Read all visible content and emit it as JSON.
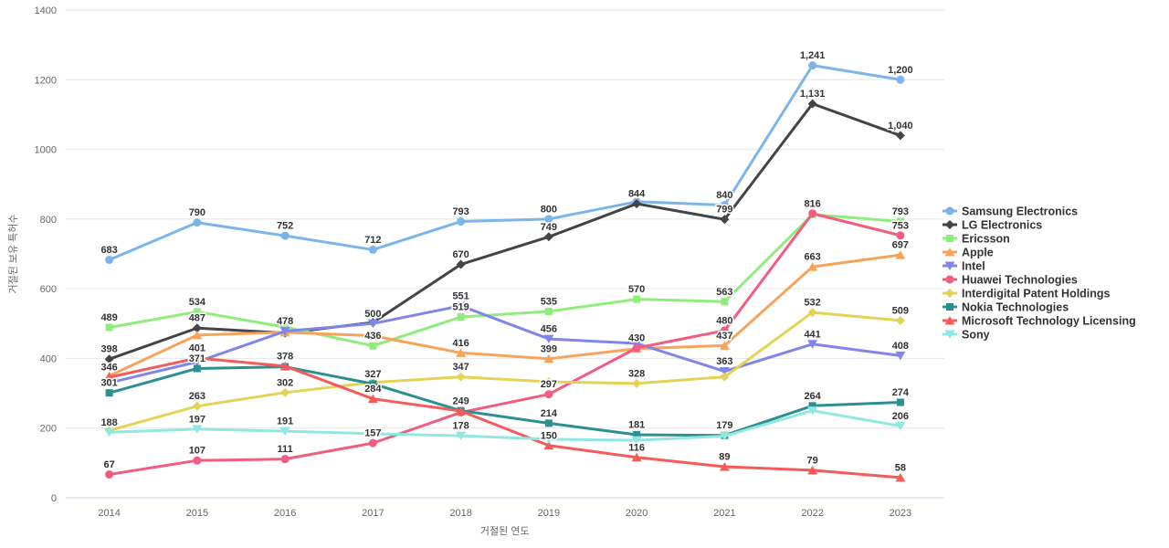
{
  "chart_data": {
    "type": "line",
    "title": "",
    "xlabel": "거절된 연도",
    "ylabel": "거절된 보유 특허수",
    "categories": [
      "2014",
      "2015",
      "2016",
      "2017",
      "2018",
      "2019",
      "2020",
      "2021",
      "2022",
      "2023"
    ],
    "y_axis": {
      "min": 0,
      "max": 1400,
      "tick_interval": 200,
      "tick_labels": [
        "0",
        "200",
        "400",
        "600",
        "800",
        "1000",
        "1200",
        "1400"
      ]
    },
    "grid": "horizontal-only",
    "legend_position": "right",
    "data_labels": "shown above points, overlapping labels hidden",
    "series": [
      {
        "name": "Samsung Electronics",
        "color": "#7cb5ec",
        "marker": "circle",
        "values": [
          683,
          790,
          752,
          712,
          793,
          800,
          850,
          840,
          1241,
          1200
        ],
        "hidden_label_indices": [
          6
        ]
      },
      {
        "name": "LG Electronics",
        "color": "#434348",
        "marker": "diamond",
        "values": [
          398,
          487,
          473,
          503,
          670,
          749,
          844,
          799,
          1131,
          1040
        ],
        "hidden_label_indices": [
          2,
          3
        ]
      },
      {
        "name": "Ericsson",
        "color": "#90ed7d",
        "marker": "square",
        "values": [
          489,
          534,
          490,
          436,
          519,
          535,
          570,
          563,
          813,
          793
        ],
        "hidden_label_indices": [
          2,
          8
        ]
      },
      {
        "name": "Apple",
        "color": "#f7a35c",
        "marker": "triangle",
        "values": [
          350,
          467,
          475,
          465,
          416,
          399,
          428,
          437,
          663,
          697
        ],
        "hidden_label_indices": [
          0,
          1,
          2,
          3,
          6
        ]
      },
      {
        "name": "Intel",
        "color": "#8085e9",
        "marker": "triangle-down",
        "values": [
          330,
          390,
          478,
          500,
          551,
          456,
          443,
          363,
          441,
          408
        ],
        "hidden_label_indices": [
          0,
          1,
          6
        ]
      },
      {
        "name": "Huawei Technologies",
        "color": "#f15c80",
        "marker": "circle",
        "values": [
          67,
          107,
          111,
          157,
          245,
          297,
          430,
          480,
          816,
          753
        ],
        "hidden_label_indices": [
          4
        ]
      },
      {
        "name": "Interdigital Patent Holdings",
        "color": "#e4d354",
        "marker": "diamond",
        "values": [
          193,
          263,
          302,
          331,
          347,
          333,
          328,
          347,
          532,
          509
        ],
        "hidden_label_indices": [
          0,
          3,
          5,
          7
        ]
      },
      {
        "name": "Nokia Technologies",
        "color": "#2b908f",
        "marker": "square",
        "values": [
          301,
          371,
          376,
          327,
          250,
          214,
          181,
          179,
          264,
          274
        ],
        "hidden_label_indices": [
          2,
          4
        ]
      },
      {
        "name": "Microsoft Technology Licensing",
        "color": "#f45b5b",
        "marker": "triangle",
        "values": [
          346,
          401,
          378,
          284,
          249,
          150,
          116,
          89,
          79,
          58
        ],
        "hidden_label_indices": []
      },
      {
        "name": "Sony",
        "color": "#91e8e1",
        "marker": "triangle-down",
        "values": [
          188,
          197,
          191,
          184,
          178,
          168,
          165,
          177,
          250,
          206
        ],
        "hidden_label_indices": [
          3,
          5,
          6,
          7,
          8
        ]
      }
    ]
  },
  "styles": {
    "background": "#ffffff",
    "grid_color": "#e6e6e6",
    "axis_line_color": "#ccd6eb",
    "tick_label_color": "#666666",
    "axis_title_color": "#666666",
    "data_label_color": "#333333",
    "legend_text_color": "#333333"
  }
}
